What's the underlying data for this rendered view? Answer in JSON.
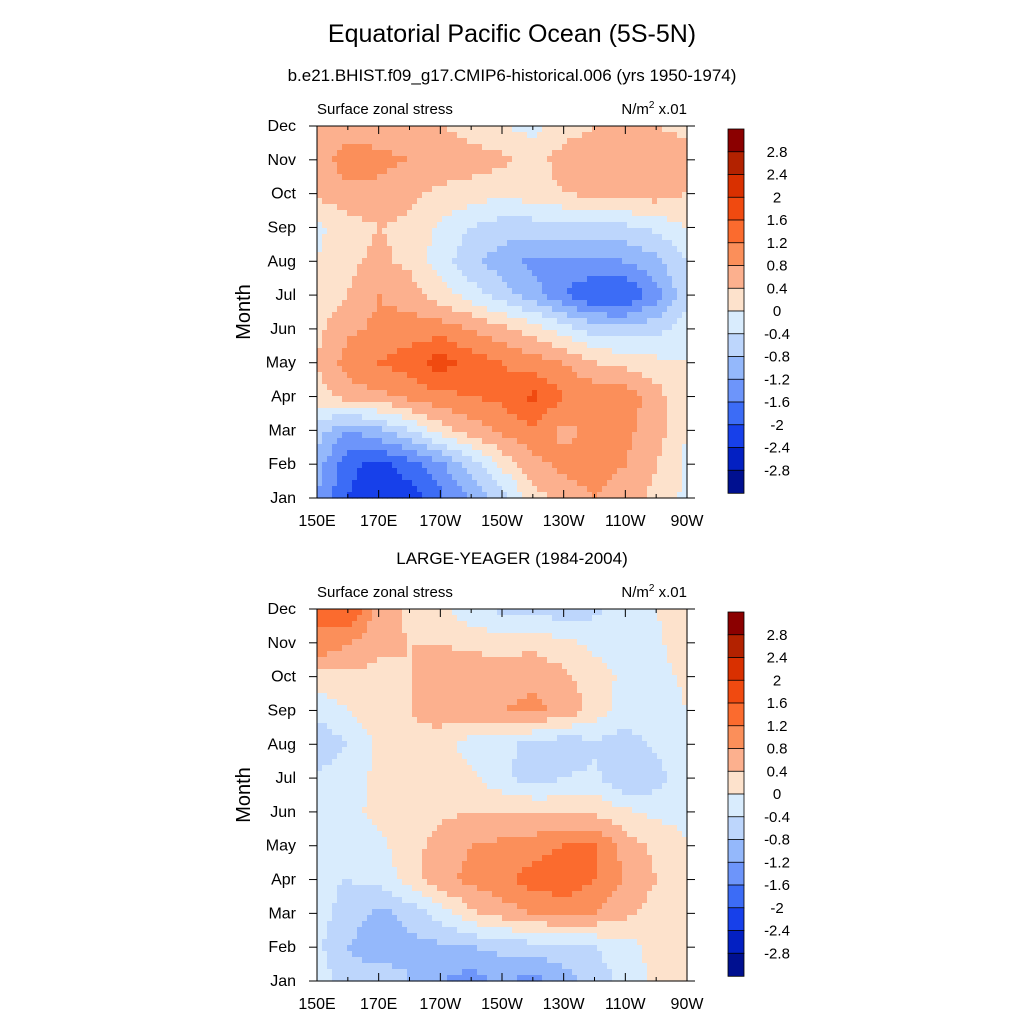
{
  "title": "Equatorial Pacific Ocean (5S-5N)",
  "colorbar": {
    "labels": [
      "2.8",
      "2.4",
      "2",
      "1.6",
      "1.2",
      "0.8",
      "0.4",
      "0",
      "-0.4",
      "-0.8",
      "-1.2",
      "-1.6",
      "-2",
      "-2.4",
      "-2.8"
    ],
    "colors": [
      "#8b0000",
      "#b32200",
      "#d93000",
      "#f04a10",
      "#fb6b2e",
      "#fb8f5a",
      "#fcb08e",
      "#fde2cc",
      "#d9ecfd",
      "#bdd6fc",
      "#94b8fb",
      "#6d95fa",
      "#3c6cf6",
      "#1740ea",
      "#0320c2",
      "#001090"
    ]
  },
  "chart_data": [
    {
      "type": "heatmap",
      "title": "b.e21.BHIST.f09_g17.CMIP6-historical.006 (yrs 1950-1974)",
      "left_label": "Surface zonal stress",
      "units": "N/m",
      "units_sup": "2",
      "units_scale": " x.01",
      "ylabel": "Month",
      "x_ticks": [
        "150E",
        "170E",
        "170W",
        "150W",
        "130W",
        "110W",
        "90W"
      ],
      "y_ticks": [
        "Jan",
        "Feb",
        "Mar",
        "Apr",
        "May",
        "Jun",
        "Jul",
        "Aug",
        "Sep",
        "Oct",
        "Nov",
        "Dec"
      ],
      "xlim": [
        150,
        270
      ],
      "grid": false,
      "x": [
        150,
        160,
        170,
        180,
        190,
        200,
        210,
        220,
        230,
        240,
        250,
        260,
        270
      ],
      "values": [
        [
          -1.2,
          -2.0,
          -2.3,
          -2.2,
          -1.7,
          -1.2,
          -0.6,
          0.2,
          0.6,
          0.8,
          0.6,
          0.3,
          -0.1
        ],
        [
          -1.0,
          -1.9,
          -2.1,
          -1.8,
          -1.3,
          -0.6,
          0.1,
          0.7,
          0.9,
          1.0,
          0.8,
          0.4,
          -0.1
        ],
        [
          -0.6,
          -1.2,
          -0.9,
          -0.4,
          0.2,
          0.6,
          0.9,
          1.1,
          0.7,
          0.9,
          0.9,
          0.6,
          0.0
        ],
        [
          0.2,
          0.6,
          0.7,
          0.9,
          1.1,
          1.2,
          1.3,
          1.7,
          1.2,
          1.1,
          1.0,
          0.6,
          0.0
        ],
        [
          0.4,
          1.0,
          1.2,
          1.4,
          1.8,
          1.4,
          1.2,
          1.0,
          0.8,
          0.4,
          0.3,
          0.1,
          0.0
        ],
        [
          0.3,
          0.7,
          0.9,
          1.0,
          1.0,
          0.8,
          0.5,
          0.2,
          -0.2,
          -0.6,
          -0.7,
          -0.5,
          -0.2
        ],
        [
          0.1,
          0.4,
          0.8,
          0.6,
          0.2,
          -0.2,
          -0.6,
          -1.0,
          -1.6,
          -2.0,
          -2.0,
          -1.4,
          -0.5
        ],
        [
          0.0,
          0.3,
          0.5,
          0.3,
          -0.2,
          -0.7,
          -1.0,
          -1.3,
          -1.3,
          -1.3,
          -1.2,
          -0.9,
          -0.4
        ],
        [
          -0.1,
          0.2,
          0.4,
          0.3,
          -0.1,
          -0.4,
          -0.6,
          -0.6,
          -0.6,
          -0.6,
          -0.5,
          -0.3,
          0.0
        ],
        [
          0.5,
          0.7,
          0.7,
          0.5,
          0.3,
          0.2,
          0.1,
          0.2,
          0.4,
          0.5,
          0.6,
          0.6,
          0.4
        ],
        [
          0.6,
          1.0,
          0.9,
          0.8,
          0.7,
          0.6,
          0.5,
          0.2,
          0.6,
          0.7,
          0.8,
          0.7,
          0.5
        ],
        [
          0.4,
          0.6,
          0.6,
          0.5,
          0.4,
          0.2,
          0.0,
          -0.1,
          0.2,
          0.4,
          0.5,
          0.4,
          0.3
        ]
      ]
    },
    {
      "type": "heatmap",
      "title": "LARGE-YEAGER (1984-2004)",
      "left_label": "Surface zonal stress",
      "units": "N/m",
      "units_sup": "2",
      "units_scale": " x.01",
      "ylabel": "Month",
      "x_ticks": [
        "150E",
        "170E",
        "170W",
        "150W",
        "130W",
        "110W",
        "90W"
      ],
      "y_ticks": [
        "Jan",
        "Feb",
        "Mar",
        "Apr",
        "May",
        "Jun",
        "Jul",
        "Aug",
        "Sep",
        "Oct",
        "Nov",
        "Dec"
      ],
      "xlim": [
        150,
        270
      ],
      "grid": false,
      "x": [
        150,
        160,
        170,
        180,
        190,
        200,
        210,
        220,
        230,
        240,
        250,
        260,
        270
      ],
      "values": [
        [
          -0.2,
          -0.6,
          -0.5,
          -0.8,
          -1.2,
          -1.4,
          -1.1,
          -1.4,
          -1.0,
          -0.6,
          -0.3,
          0.1,
          0.1
        ],
        [
          -0.3,
          -0.8,
          -1.1,
          -0.9,
          -0.9,
          -0.8,
          -0.7,
          -0.6,
          -0.5,
          -0.4,
          -0.2,
          0.2,
          0.1
        ],
        [
          -0.2,
          -0.6,
          -0.9,
          -0.7,
          -0.2,
          0.3,
          0.6,
          0.8,
          0.9,
          0.8,
          0.5,
          0.2,
          0.0
        ],
        [
          -0.3,
          -0.4,
          -0.3,
          0.2,
          0.7,
          0.9,
          1.1,
          1.4,
          1.5,
          1.2,
          0.8,
          0.4,
          0.0
        ],
        [
          -0.3,
          -0.3,
          -0.1,
          0.2,
          0.6,
          0.8,
          0.9,
          1.0,
          1.2,
          1.3,
          0.6,
          0.3,
          0.0
        ],
        [
          -0.2,
          -0.1,
          0.1,
          0.1,
          0.3,
          0.4,
          0.4,
          0.4,
          0.3,
          0.3,
          0.1,
          -0.1,
          -0.1
        ],
        [
          -0.3,
          -0.2,
          0.1,
          0.2,
          0.2,
          0.1,
          -0.3,
          -0.6,
          -0.4,
          -0.3,
          -0.8,
          -0.6,
          -0.1
        ],
        [
          -0.7,
          -0.4,
          0.1,
          0.3,
          0.2,
          -0.2,
          -0.3,
          -0.5,
          -0.7,
          -0.5,
          -0.6,
          -0.3,
          0.0
        ],
        [
          -0.3,
          0.0,
          0.3,
          0.4,
          0.6,
          0.7,
          0.8,
          0.9,
          0.7,
          0.2,
          -0.2,
          -0.2,
          0.0
        ],
        [
          0.2,
          0.3,
          0.3,
          0.4,
          0.6,
          0.7,
          0.6,
          0.7,
          0.5,
          0.2,
          -0.1,
          -0.2,
          0.1
        ],
        [
          1.2,
          0.8,
          0.5,
          0.4,
          0.4,
          0.3,
          0.2,
          0.3,
          0.1,
          -0.1,
          -0.3,
          -0.1,
          0.3
        ],
        [
          1.2,
          1.6,
          0.7,
          0.3,
          0.1,
          -0.3,
          -0.5,
          -0.5,
          -0.7,
          -0.5,
          -0.2,
          0.0,
          0.2
        ]
      ]
    }
  ]
}
